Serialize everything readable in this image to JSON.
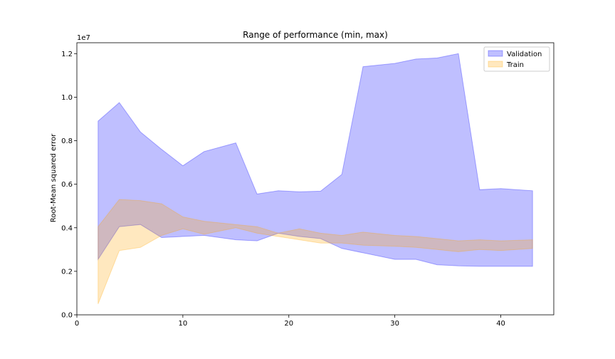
{
  "chart_data": {
    "type": "area",
    "title": "Range of performance (min, max)",
    "xlabel": "",
    "ylabel": "Root-Mean squared error",
    "y_offset_text": "1e7",
    "xlim": [
      0,
      45
    ],
    "ylim": [
      0,
      12500000
    ],
    "xticks": [
      0,
      10,
      20,
      30,
      40
    ],
    "yticks": [
      0,
      2000000,
      4000000,
      6000000,
      8000000,
      10000000,
      12000000
    ],
    "ytick_labels": [
      "0.0",
      "0.2",
      "0.4",
      "0.6",
      "0.8",
      "1.0",
      "1.2"
    ],
    "grid": false,
    "legend_position": "top-right",
    "x": [
      2,
      4,
      6,
      8,
      10,
      12,
      15,
      17,
      19,
      21,
      23,
      25,
      27,
      30,
      32,
      34,
      36,
      38,
      40,
      43
    ],
    "series": [
      {
        "name": "Validation",
        "color": "#0000ff",
        "fill_opacity": 0.25,
        "min": [
          2550000,
          4050000,
          4150000,
          3550000,
          3600000,
          3650000,
          3450000,
          3400000,
          3750000,
          3600000,
          3500000,
          3050000,
          2850000,
          2550000,
          2550000,
          2300000,
          2250000,
          2230000,
          2230000,
          2230000
        ],
        "max": [
          8900000,
          9750000,
          8400000,
          7600000,
          6850000,
          7500000,
          7900000,
          5550000,
          5700000,
          5650000,
          5680000,
          6450000,
          11400000,
          11550000,
          11750000,
          11800000,
          12000000,
          5750000,
          5800000,
          5700000
        ]
      },
      {
        "name": "Train",
        "color": "#ffa500",
        "fill_opacity": 0.25,
        "min": [
          500000,
          2950000,
          3100000,
          3650000,
          3950000,
          3700000,
          4000000,
          3750000,
          3600000,
          3450000,
          3300000,
          3300000,
          3200000,
          3150000,
          3100000,
          3000000,
          2900000,
          3000000,
          2950000,
          3050000
        ],
        "max": [
          4050000,
          5300000,
          5250000,
          5100000,
          4500000,
          4300000,
          4150000,
          4050000,
          3750000,
          3950000,
          3750000,
          3650000,
          3800000,
          3650000,
          3600000,
          3500000,
          3400000,
          3450000,
          3400000,
          3450000
        ]
      }
    ]
  }
}
